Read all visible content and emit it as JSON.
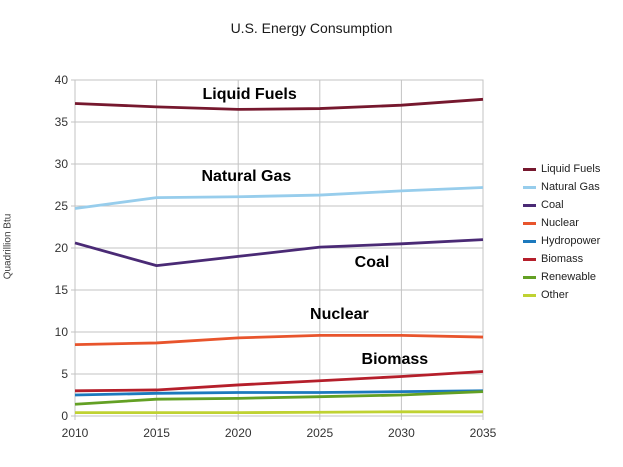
{
  "chart_data": {
    "type": "line",
    "title": "U.S. Energy Consumption",
    "ylabel": "Quadrillion Btu",
    "xlabel": "",
    "categories": [
      2010,
      2015,
      2020,
      2025,
      2030,
      2035
    ],
    "xlim": [
      2010,
      2035
    ],
    "ylim": [
      0,
      40
    ],
    "xticks": [
      2010,
      2015,
      2020,
      2025,
      2030,
      2035
    ],
    "yticks": [
      0,
      5,
      10,
      15,
      20,
      25,
      30,
      35,
      40
    ],
    "grid": true,
    "legend_position": "right",
    "series": [
      {
        "name": "Liquid Fuels",
        "color": "#76182E",
        "values": [
          37.2,
          36.8,
          36.5,
          36.6,
          37.0,
          37.7
        ]
      },
      {
        "name": "Natural Gas",
        "color": "#97CDEC",
        "values": [
          24.7,
          26.0,
          26.1,
          26.3,
          26.8,
          27.2
        ]
      },
      {
        "name": "Coal",
        "color": "#4A2A75",
        "values": [
          20.6,
          17.9,
          19.0,
          20.1,
          20.5,
          21.0
        ]
      },
      {
        "name": "Nuclear",
        "color": "#E8542C",
        "values": [
          8.5,
          8.7,
          9.3,
          9.6,
          9.6,
          9.4
        ]
      },
      {
        "name": "Hydropower",
        "color": "#1C79BD",
        "values": [
          2.5,
          2.7,
          2.8,
          2.8,
          2.9,
          3.0
        ]
      },
      {
        "name": "Biomass",
        "color": "#B51F2B",
        "values": [
          3.0,
          3.1,
          3.7,
          4.2,
          4.7,
          5.3
        ]
      },
      {
        "name": "Renewable",
        "color": "#63A024",
        "values": [
          1.4,
          2.0,
          2.1,
          2.3,
          2.5,
          2.9
        ]
      },
      {
        "name": "Other",
        "color": "#BFD232",
        "values": [
          0.4,
          0.4,
          0.4,
          0.45,
          0.5,
          0.5
        ]
      }
    ],
    "annotations": [
      {
        "text": "Liquid Fuels",
        "year": 2020.7,
        "value": 38.2
      },
      {
        "text": "Natural Gas",
        "year": 2020.5,
        "value": 28.5
      },
      {
        "text": "Coal",
        "year": 2028.2,
        "value": 18.2
      },
      {
        "text": "Nuclear",
        "year": 2026.2,
        "value": 12.0
      },
      {
        "text": "Biomass",
        "year": 2029.6,
        "value": 6.7
      }
    ],
    "colors": {
      "grid": "#C3C3C3",
      "tick_text": "#333333",
      "title_text": "#1a1a1a"
    }
  }
}
